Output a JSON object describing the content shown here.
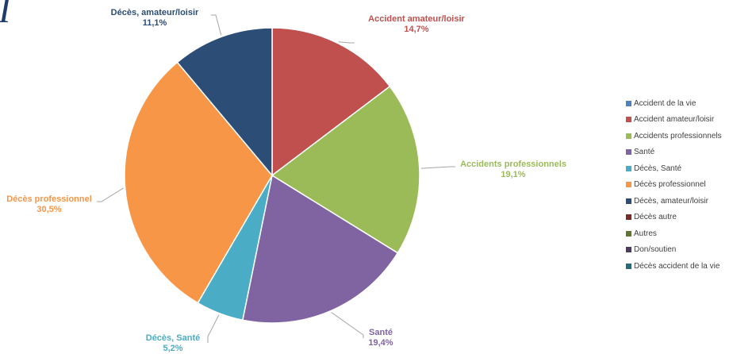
{
  "corner_glyph": "I",
  "chart_data": {
    "type": "pie",
    "title": "",
    "legend_position": "right",
    "legend": [
      {
        "name": "Accident de la vie",
        "color": "#4f81bd"
      },
      {
        "name": "Accident amateur/loisir",
        "color": "#c0504d"
      },
      {
        "name": "Accidents professionnels",
        "color": "#9bbb59"
      },
      {
        "name": "Santé",
        "color": "#8064a2"
      },
      {
        "name": "Décès, Santé",
        "color": "#4bacc6"
      },
      {
        "name": "Décès professionnel",
        "color": "#f79646"
      },
      {
        "name": "Décès, amateur/loisir",
        "color": "#2c4d75"
      },
      {
        "name": "Décès autre",
        "color": "#772c2a"
      },
      {
        "name": "Autres",
        "color": "#5f7530"
      },
      {
        "name": "Don/soutien",
        "color": "#4d3b62"
      },
      {
        "name": "Décès accident de la vie",
        "color": "#276a7c"
      }
    ],
    "slices": [
      {
        "name": "Accident amateur/loisir",
        "value": 14.7,
        "value_label": "14,7%",
        "color": "#c0504d"
      },
      {
        "name": "Accidents professionnels",
        "value": 19.1,
        "value_label": "19,1%",
        "color": "#9bbb59"
      },
      {
        "name": "Santé",
        "value": 19.4,
        "value_label": "19,4%",
        "color": "#8064a2"
      },
      {
        "name": "Décès, Santé",
        "value": 5.2,
        "value_label": "5,2%",
        "color": "#4bacc6"
      },
      {
        "name": "Décès professionnel",
        "value": 30.5,
        "value_label": "30,5%",
        "color": "#f79646"
      },
      {
        "name": "Décès, amateur/loisir",
        "value": 11.1,
        "value_label": "11,1%",
        "color": "#2c4d75"
      }
    ]
  }
}
